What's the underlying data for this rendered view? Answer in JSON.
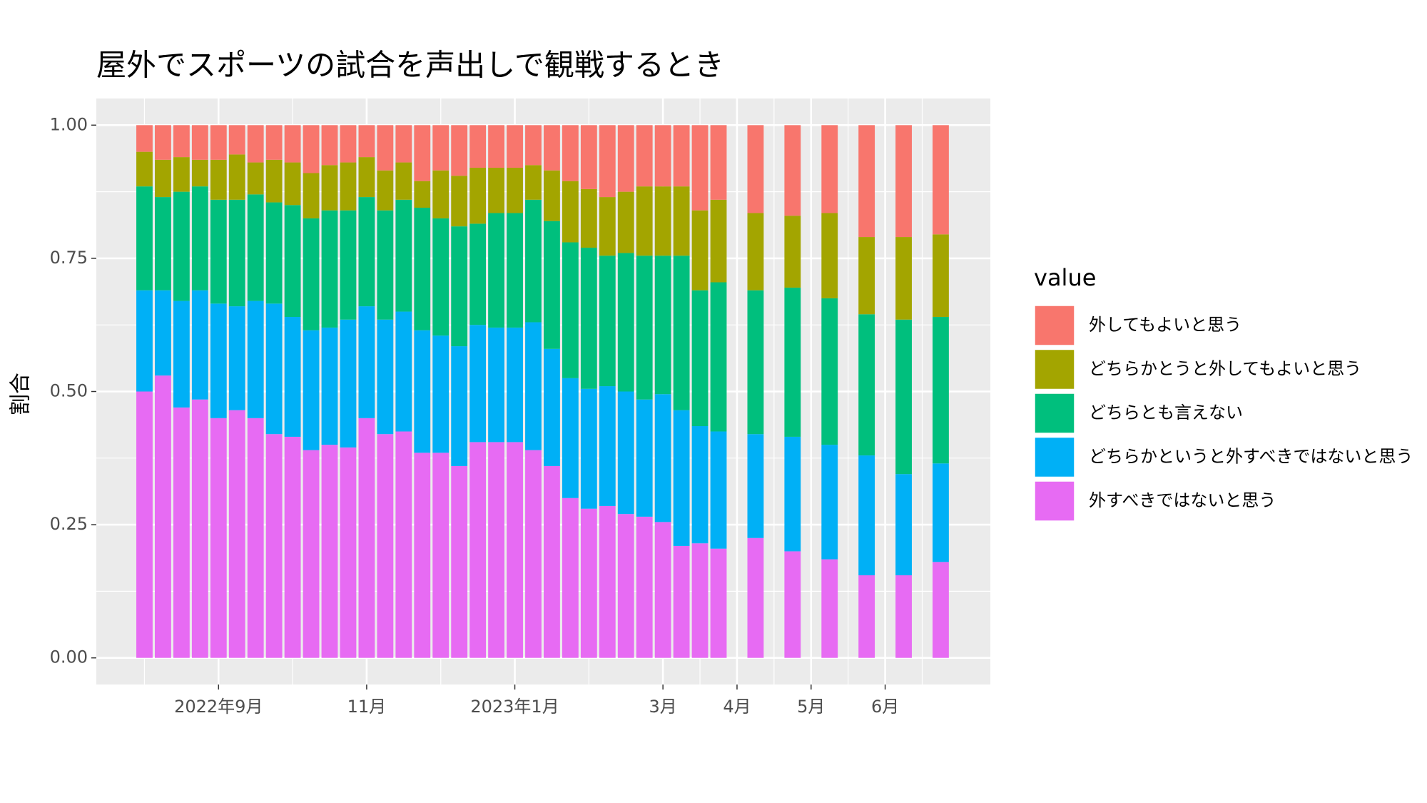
{
  "chart_data": {
    "type": "stacked_bar",
    "title": "屋外でスポーツの試合を声出しで観戦するとき",
    "ylabel": "割合",
    "legend_title": "value",
    "x": [
      8,
      8.25,
      8.5,
      8.75,
      9,
      9.25,
      9.5,
      9.75,
      10,
      10.25,
      10.5,
      10.75,
      11,
      11.25,
      11.5,
      11.75,
      12,
      12.25,
      12.5,
      12.75,
      13,
      13.25,
      13.5,
      13.75,
      14,
      14.25,
      14.5,
      14.75,
      15,
      15.25,
      15.5,
      15.75,
      16.25,
      16.75,
      17.25,
      17.75,
      18.25,
      18.75
    ],
    "xlim": [
      7.35,
      19.42
    ],
    "xticks": [
      {
        "value": 9,
        "label": "2022年9月"
      },
      {
        "value": 11,
        "label": "11月"
      },
      {
        "value": 13,
        "label": "2023年1月"
      },
      {
        "value": 15,
        "label": "3月"
      },
      {
        "value": 16,
        "label": "4月"
      },
      {
        "value": 17,
        "label": "5月"
      },
      {
        "value": 18,
        "label": "6月"
      }
    ],
    "ylim": [
      -0.05,
      1.05
    ],
    "yticks": [
      {
        "value": 0,
        "label": "0.00"
      },
      {
        "value": 0.25,
        "label": "0.25"
      },
      {
        "value": 0.5,
        "label": "0.50"
      },
      {
        "value": 0.75,
        "label": "0.75"
      },
      {
        "value": 1,
        "label": "1.00"
      }
    ],
    "grid": true,
    "legend": "right",
    "series": [
      {
        "name": "外すべきではないと思う",
        "color": "#E76BF3",
        "values": [
          0.5,
          0.53,
          0.47,
          0.485,
          0.45,
          0.465,
          0.45,
          0.42,
          0.415,
          0.39,
          0.4,
          0.395,
          0.45,
          0.42,
          0.425,
          0.385,
          0.385,
          0.36,
          0.405,
          0.405,
          0.405,
          0.39,
          0.36,
          0.3,
          0.28,
          0.285,
          0.27,
          0.265,
          0.255,
          0.21,
          0.215,
          0.205,
          0.225,
          0.2,
          0.185,
          0.155,
          0.155,
          0.18
        ]
      },
      {
        "name": "どちらかというと外すべきではないと思う",
        "color": "#00B0F6",
        "values": [
          0.19,
          0.16,
          0.2,
          0.205,
          0.215,
          0.195,
          0.22,
          0.245,
          0.225,
          0.225,
          0.22,
          0.24,
          0.21,
          0.215,
          0.225,
          0.23,
          0.22,
          0.225,
          0.22,
          0.215,
          0.215,
          0.24,
          0.22,
          0.225,
          0.225,
          0.225,
          0.23,
          0.22,
          0.24,
          0.255,
          0.22,
          0.22,
          0.195,
          0.215,
          0.215,
          0.225,
          0.19,
          0.185
        ]
      },
      {
        "name": "どちらとも言えない",
        "color": "#00BF7D",
        "values": [
          0.195,
          0.175,
          0.205,
          0.195,
          0.195,
          0.2,
          0.2,
          0.19,
          0.21,
          0.21,
          0.22,
          0.205,
          0.205,
          0.205,
          0.21,
          0.23,
          0.22,
          0.225,
          0.19,
          0.215,
          0.215,
          0.23,
          0.24,
          0.255,
          0.265,
          0.245,
          0.26,
          0.27,
          0.26,
          0.29,
          0.255,
          0.28,
          0.27,
          0.28,
          0.275,
          0.265,
          0.29,
          0.275
        ]
      },
      {
        "name": "どちらかとうと外してもよいと思う",
        "color": "#A3A500",
        "values": [
          0.065,
          0.07,
          0.065,
          0.05,
          0.075,
          0.085,
          0.06,
          0.08,
          0.08,
          0.085,
          0.085,
          0.09,
          0.075,
          0.075,
          0.07,
          0.05,
          0.09,
          0.095,
          0.105,
          0.085,
          0.085,
          0.065,
          0.095,
          0.115,
          0.11,
          0.11,
          0.115,
          0.13,
          0.13,
          0.13,
          0.15,
          0.155,
          0.145,
          0.135,
          0.16,
          0.145,
          0.155,
          0.155
        ]
      },
      {
        "name": "外してもよいと思う",
        "color": "#F8766D",
        "values": [
          0.05,
          0.065,
          0.06,
          0.065,
          0.065,
          0.055,
          0.07,
          0.065,
          0.07,
          0.09,
          0.075,
          0.07,
          0.06,
          0.085,
          0.07,
          0.105,
          0.085,
          0.095,
          0.08,
          0.08,
          0.08,
          0.075,
          0.085,
          0.105,
          0.12,
          0.135,
          0.125,
          0.115,
          0.115,
          0.115,
          0.16,
          0.14,
          0.165,
          0.17,
          0.165,
          0.21,
          0.21,
          0.205
        ]
      }
    ]
  }
}
